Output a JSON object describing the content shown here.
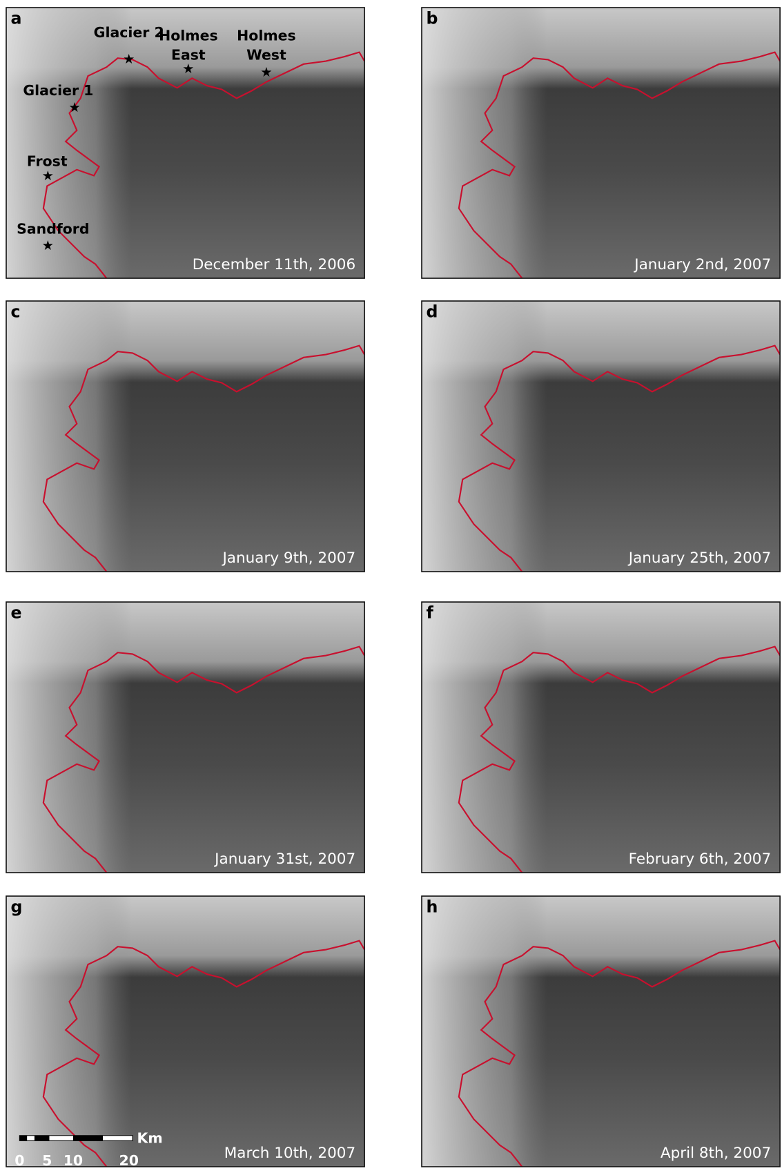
{
  "panels": [
    {
      "letter": "a",
      "date": "December 11th, 2006"
    },
    {
      "letter": "b",
      "date": "January 2nd, 2007"
    },
    {
      "letter": "c",
      "date": "January 9th, 2007"
    },
    {
      "letter": "d",
      "date": "January 25th, 2007"
    },
    {
      "letter": "e",
      "date": "January 31st, 2007"
    },
    {
      "letter": "f",
      "date": "February 6th, 2007"
    },
    {
      "letter": "g",
      "date": "March 10th, 2007"
    },
    {
      "letter": "h",
      "date": "April 8th, 2007"
    }
  ],
  "sites": [
    {
      "lines": [
        "Glacier 2"
      ]
    },
    {
      "lines": [
        "Holmes",
        "East"
      ]
    },
    {
      "lines": [
        "Holmes",
        "West"
      ]
    },
    {
      "lines": [
        "Glacier 1"
      ]
    },
    {
      "lines": [
        "Frost"
      ]
    },
    {
      "lines": [
        "Sandford"
      ]
    }
  ],
  "scale_bar": {
    "labels": [
      "0",
      "5",
      "10",
      "20"
    ],
    "unit": "Km"
  }
}
